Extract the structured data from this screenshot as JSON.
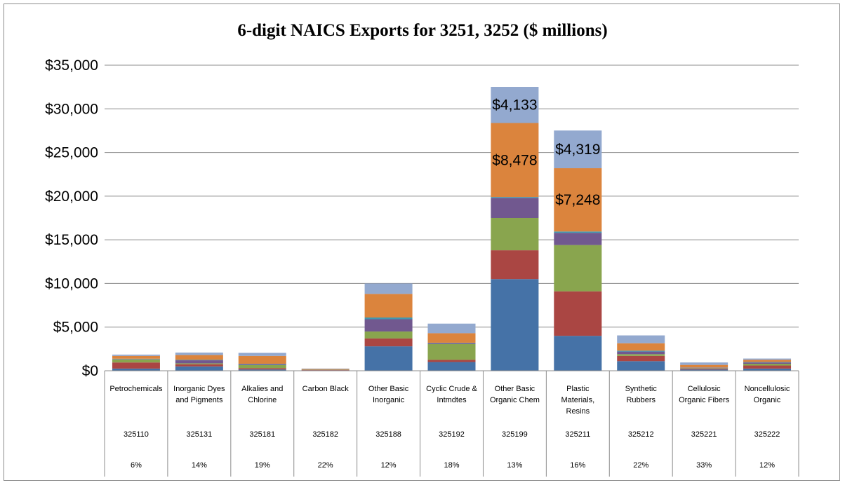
{
  "chart_data": {
    "type": "bar",
    "stacked": true,
    "title": "6-digit NAICS Exports for 3251, 3252 ($ millions)",
    "ylim": [
      0,
      35000
    ],
    "yticks": [
      "$0",
      "$5,000",
      "$10,000",
      "$15,000",
      "$20,000",
      "$25,000",
      "$30,000",
      "$35,000"
    ],
    "grid": true,
    "categories": [
      {
        "name": "Petrochemicals",
        "code": "325110",
        "pct": "6%"
      },
      {
        "name": "Inorganic Dyes and Pigments",
        "code": "325131",
        "pct": "14%"
      },
      {
        "name": "Alkalies and Chlorine",
        "code": "325181",
        "pct": "19%"
      },
      {
        "name": "Carbon Black",
        "code": "325182",
        "pct": "22%"
      },
      {
        "name": "Other Basic Inorganic",
        "code": "325188",
        "pct": "12%"
      },
      {
        "name": "Cyclic Crude & Intmdtes",
        "code": "325192",
        "pct": "18%"
      },
      {
        "name": "Other Basic Organic Chem",
        "code": "325199",
        "pct": "13%"
      },
      {
        "name": "Plastic Materials, Resins",
        "code": "325211",
        "pct": "16%"
      },
      {
        "name": "Synthetic Rubbers",
        "code": "325212",
        "pct": "22%"
      },
      {
        "name": "Cellulosic Organic Fibers",
        "code": "325221",
        "pct": "33%"
      },
      {
        "name": "Noncellulosic Organic",
        "code": "325222",
        "pct": "12%"
      }
    ],
    "series": [
      {
        "color": "#4572a7",
        "values": [
          250,
          500,
          150,
          50,
          2800,
          1000,
          10500,
          4000,
          1100,
          150,
          250
        ]
      },
      {
        "color": "#aa4643",
        "values": [
          700,
          250,
          150,
          30,
          900,
          250,
          3300,
          5100,
          600,
          100,
          350
        ]
      },
      {
        "color": "#89a54e",
        "values": [
          350,
          100,
          350,
          20,
          800,
          1800,
          3700,
          5300,
          200,
          50,
          200
        ]
      },
      {
        "color": "#71588f",
        "values": [
          50,
          350,
          100,
          10,
          1400,
          100,
          2300,
          1400,
          300,
          50,
          150
        ]
      },
      {
        "color": "#4198af",
        "values": [
          30,
          50,
          50,
          10,
          200,
          50,
          100,
          150,
          100,
          20,
          50
        ]
      },
      {
        "color": "#db843d",
        "values": [
          320,
          550,
          900,
          80,
          2700,
          1100,
          8478,
          7248,
          850,
          300,
          250
        ]
      },
      {
        "color": "#93a9cf",
        "values": [
          150,
          280,
          350,
          50,
          1200,
          1100,
          4133,
          4319,
          900,
          280,
          150
        ]
      }
    ],
    "data_labels": [
      {
        "category": 6,
        "series": 6,
        "text": "$4,133"
      },
      {
        "category": 6,
        "series": 5,
        "text": "$8,478"
      },
      {
        "category": 7,
        "series": 6,
        "text": "$4,319"
      },
      {
        "category": 7,
        "series": 5,
        "text": "$7,248"
      }
    ]
  }
}
